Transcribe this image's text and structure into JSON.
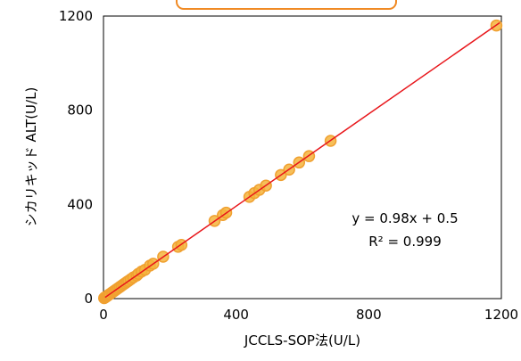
{
  "chart_data": {
    "type": "scatter",
    "xlabel": "JCCLS-SOP法(U/L)",
    "ylabel": "シカリキッド  ALT(U/L)",
    "xlim": [
      0,
      1200
    ],
    "ylim": [
      0,
      1200
    ],
    "x_ticks": [
      "0",
      "400",
      "800",
      "1200"
    ],
    "y_ticks": [
      "0",
      "400",
      "800",
      "1200"
    ],
    "grid": false,
    "points": [
      {
        "x": 2,
        "y": 2
      },
      {
        "x": 4,
        "y": 5
      },
      {
        "x": 6,
        "y": 6
      },
      {
        "x": 8,
        "y": 8
      },
      {
        "x": 10,
        "y": 10
      },
      {
        "x": 12,
        "y": 12
      },
      {
        "x": 15,
        "y": 15
      },
      {
        "x": 18,
        "y": 18
      },
      {
        "x": 20,
        "y": 20
      },
      {
        "x": 25,
        "y": 25
      },
      {
        "x": 28,
        "y": 28
      },
      {
        "x": 32,
        "y": 32
      },
      {
        "x": 36,
        "y": 36
      },
      {
        "x": 40,
        "y": 40
      },
      {
        "x": 45,
        "y": 45
      },
      {
        "x": 50,
        "y": 50
      },
      {
        "x": 55,
        "y": 55
      },
      {
        "x": 60,
        "y": 60
      },
      {
        "x": 65,
        "y": 65
      },
      {
        "x": 70,
        "y": 70
      },
      {
        "x": 75,
        "y": 75
      },
      {
        "x": 82,
        "y": 82
      },
      {
        "x": 90,
        "y": 90
      },
      {
        "x": 100,
        "y": 98
      },
      {
        "x": 105,
        "y": 105
      },
      {
        "x": 115,
        "y": 115
      },
      {
        "x": 125,
        "y": 122
      },
      {
        "x": 140,
        "y": 140
      },
      {
        "x": 150,
        "y": 148
      },
      {
        "x": 180,
        "y": 178
      },
      {
        "x": 225,
        "y": 220
      },
      {
        "x": 235,
        "y": 228
      },
      {
        "x": 335,
        "y": 330
      },
      {
        "x": 360,
        "y": 355
      },
      {
        "x": 370,
        "y": 365
      },
      {
        "x": 440,
        "y": 432
      },
      {
        "x": 455,
        "y": 448
      },
      {
        "x": 470,
        "y": 462
      },
      {
        "x": 490,
        "y": 480
      },
      {
        "x": 535,
        "y": 525
      },
      {
        "x": 560,
        "y": 548
      },
      {
        "x": 590,
        "y": 578
      },
      {
        "x": 620,
        "y": 605
      },
      {
        "x": 685,
        "y": 670
      },
      {
        "x": 1185,
        "y": 1160
      }
    ],
    "trendline": {
      "slope": 0.98,
      "intercept": 0.5
    },
    "annotations": [
      "y = 0.98x + 0.5",
      "R² = 0.999"
    ],
    "colors": {
      "point_fill": "#F5B43C",
      "point_stroke": "#F0A030",
      "trendline": "#E8161B",
      "frame": "#000000",
      "top_shape_fill": "#FFFFFF",
      "top_shape_stroke": "#F08A24"
    }
  }
}
